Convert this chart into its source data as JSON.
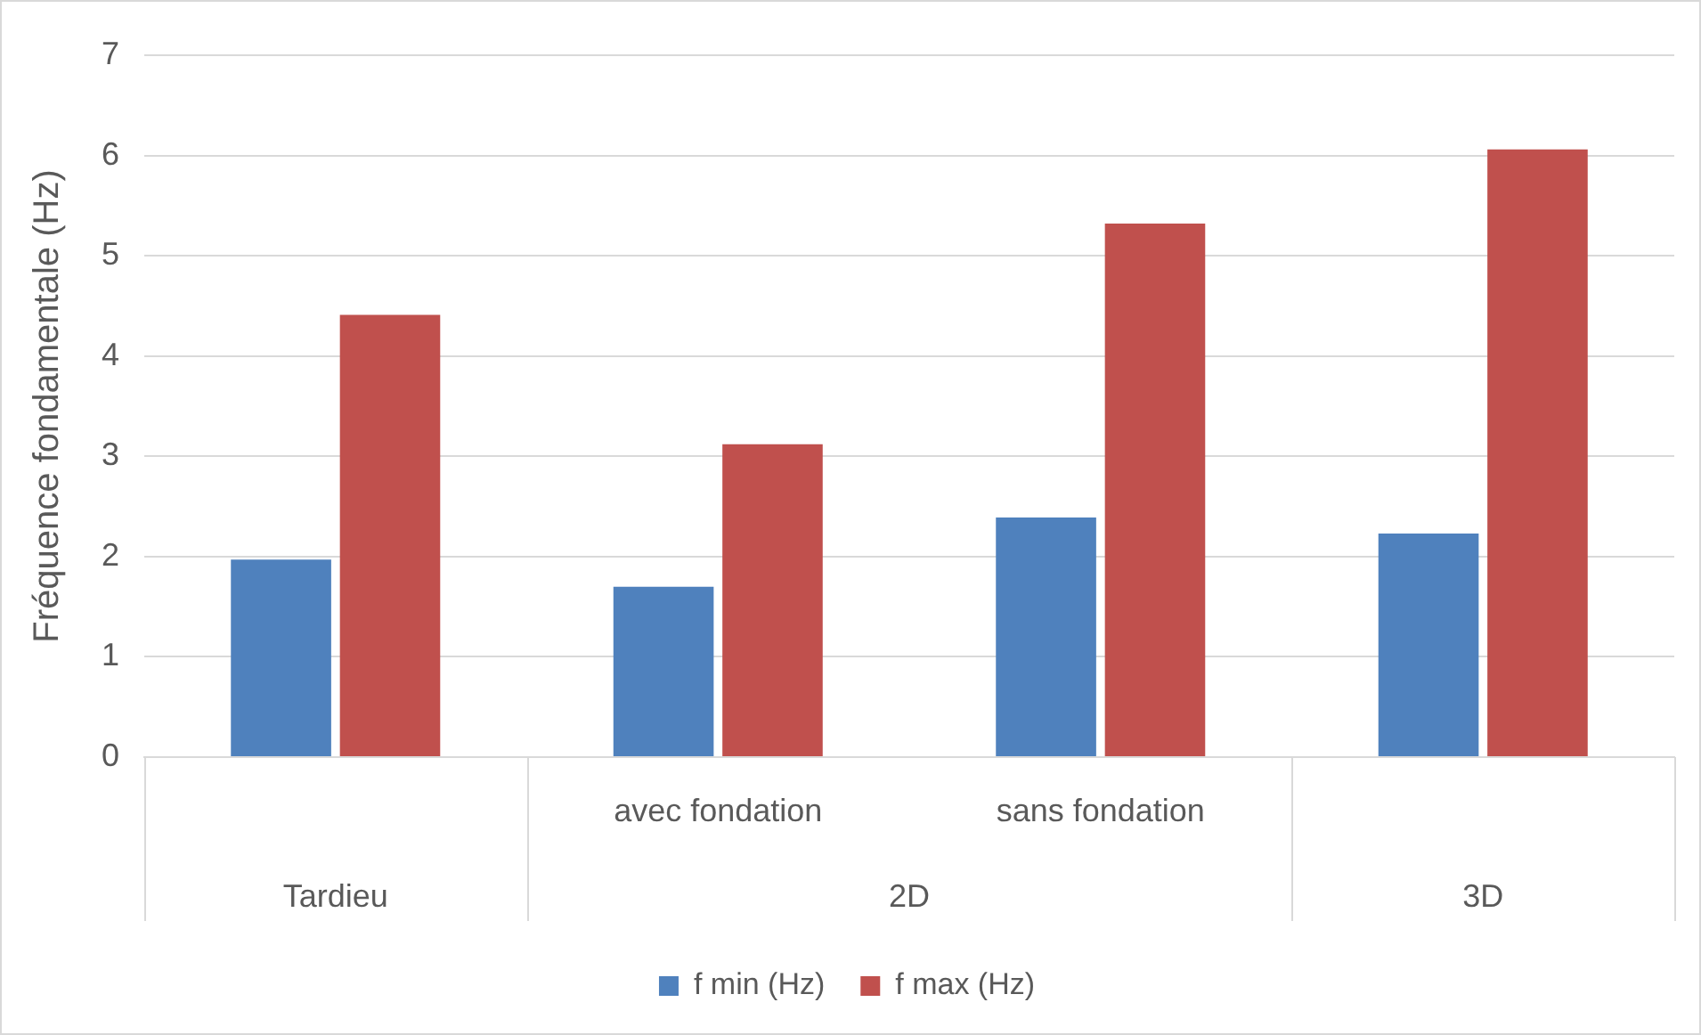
{
  "chart_data": {
    "type": "bar",
    "ylabel": "Fréquence fondamentale (Hz)",
    "categories": [
      "Tardieu",
      "avec fondation",
      "sans fondation",
      "3D"
    ],
    "series": [
      {
        "name": "f min (Hz)",
        "color": "#4f81bd",
        "values": [
          1.97,
          1.7,
          2.39,
          2.23
        ]
      },
      {
        "name": "f max (Hz)",
        "color": "#c0504d",
        "values": [
          4.41,
          3.12,
          5.32,
          6.06
        ]
      }
    ],
    "annotations": [
      "2D"
    ],
    "ylim": [
      0,
      7
    ],
    "yticks": [
      0,
      1,
      2,
      3,
      4,
      5,
      6,
      7
    ],
    "grid": "y",
    "legend": "bottom"
  }
}
